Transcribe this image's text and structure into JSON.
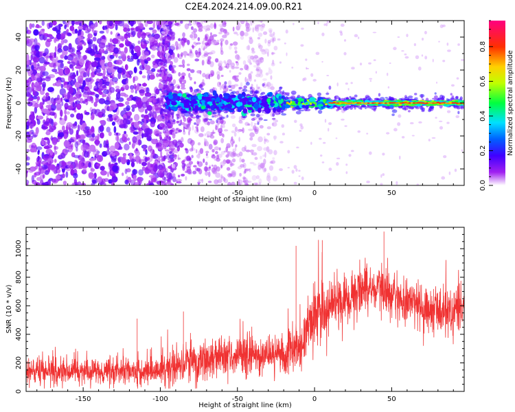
{
  "title": "C2E4.2024.214.09.00.R21",
  "chart_data": [
    {
      "type": "heatmap",
      "name": "spectrogram",
      "xlabel": "Height of straight line (km)",
      "ylabel": "Frequency (Hz)",
      "xlim": [
        -187,
        97
      ],
      "ylim": [
        -50,
        50
      ],
      "x_ticks": [
        -150,
        -100,
        -50,
        0,
        50
      ],
      "x_tick_labels": [
        "-150",
        "-100",
        "-50",
        "0",
        "50"
      ],
      "y_ticks": [
        -40,
        -20,
        0,
        20,
        40
      ],
      "y_tick_labels": [
        "-40",
        "-20",
        "0",
        "20",
        "40"
      ],
      "colorbar": {
        "label": "Normalized spectral amplitude",
        "range": [
          0.0,
          0.95
        ],
        "ticks": [
          0.0,
          0.2,
          0.4,
          0.6,
          0.8
        ],
        "tick_labels": [
          "0.0",
          "0.2",
          "0.4",
          "0.6",
          "0.8"
        ],
        "colormap": "hsv-rainbow"
      },
      "features": [
        {
          "description": "broadband noise region",
          "x_range": [
            -187,
            -100
          ],
          "y_range": [
            -50,
            50
          ],
          "amplitude": [
            0.05,
            0.18
          ]
        },
        {
          "description": "fading noise region",
          "x_range": [
            -100,
            -25
          ],
          "y_range": [
            -50,
            50
          ],
          "amplitude": [
            0.02,
            0.1
          ]
        },
        {
          "description": "zero-frequency carrier band",
          "x_range": [
            -100,
            97
          ],
          "y_center": 0,
          "amplitude": [
            0.2,
            0.9
          ]
        }
      ]
    },
    {
      "type": "line",
      "name": "snr",
      "xlabel": "Height of straight line (km)",
      "ylabel": "SNR (10 * v/v)",
      "xlim": [
        -187,
        97
      ],
      "ylim": [
        0,
        1150
      ],
      "x_ticks": [
        -150,
        -100,
        -50,
        0,
        50
      ],
      "x_tick_labels": [
        "-150",
        "-100",
        "-50",
        "0",
        "50"
      ],
      "y_ticks": [
        0,
        200,
        400,
        600,
        800,
        1000
      ],
      "y_tick_labels": [
        "0",
        "200",
        "400",
        "600",
        "800",
        "1000"
      ],
      "color": "#f03232",
      "trend": {
        "x": [
          -187,
          -110,
          -100,
          -85,
          -60,
          -40,
          -20,
          -10,
          -5,
          0,
          10,
          30,
          45,
          60,
          80,
          97
        ],
        "y": [
          140,
          140,
          140,
          200,
          240,
          250,
          250,
          300,
          420,
          520,
          600,
          700,
          700,
          620,
          560,
          540
        ]
      },
      "notable_peaks": [
        {
          "x": 45,
          "y": 1120
        },
        {
          "x": 5,
          "y": 1060
        },
        {
          "x": -12,
          "y": 1020
        },
        {
          "x": -115,
          "y": 510
        },
        {
          "x": -85,
          "y": 560
        }
      ]
    }
  ]
}
